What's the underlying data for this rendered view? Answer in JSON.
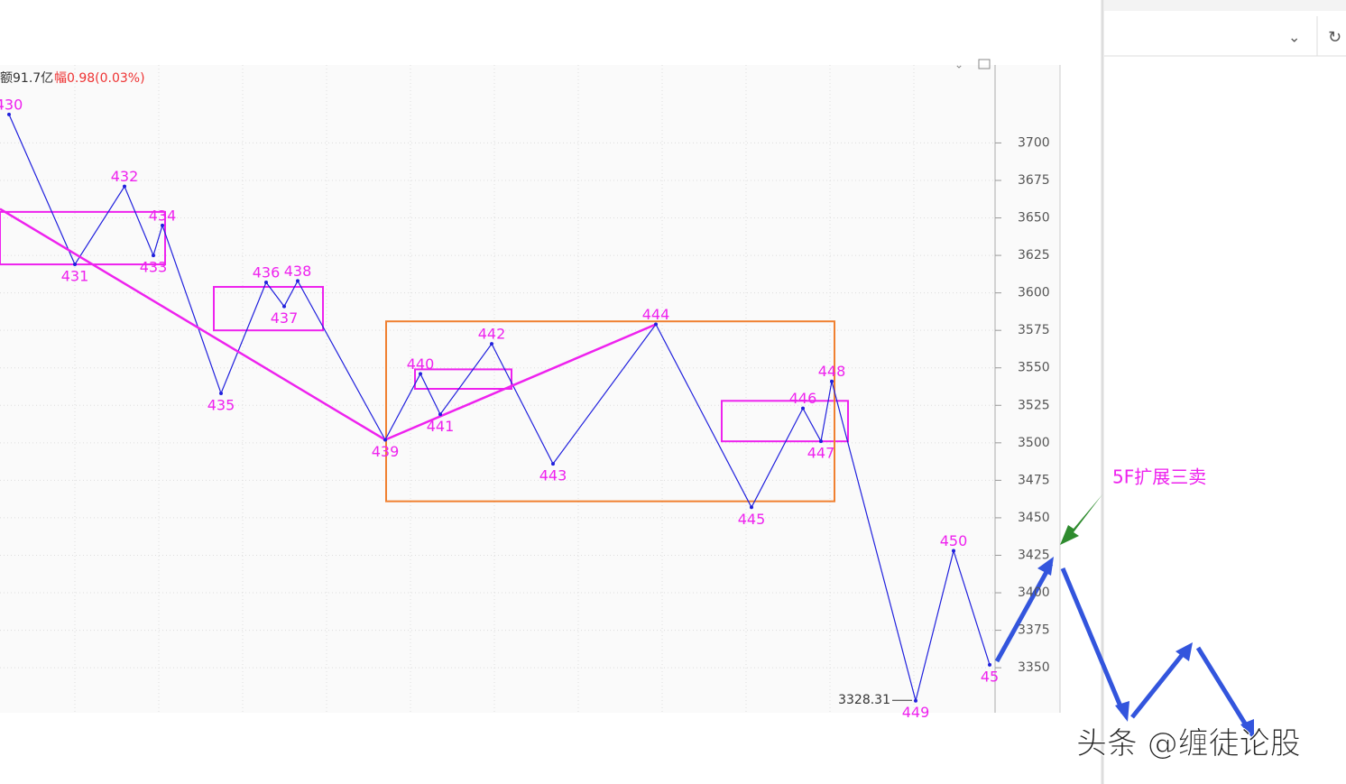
{
  "chart_data": {
    "type": "zigzag",
    "header_volume": "额91.7亿",
    "header_change": "幅0.98(0.03%)",
    "x": [
      10,
      83,
      138,
      170,
      180,
      245,
      295,
      315,
      330,
      427,
      466,
      488,
      545,
      613,
      727,
      833,
      890,
      910,
      922,
      1015,
      1057,
      1097
    ],
    "labels": [
      "430",
      "431",
      "432",
      "433",
      "434",
      "435",
      "436",
      "437",
      "438",
      "439",
      "440",
      "441",
      "442",
      "443",
      "444",
      "445",
      "446",
      "447",
      "448",
      "449",
      "450",
      "45"
    ],
    "series": [
      {
        "color": "#2020dd",
        "values": [
          3719,
          3619,
          3671,
          3625,
          3645,
          3533,
          3607,
          3591,
          3608,
          3502,
          3546,
          3519,
          3566,
          3486,
          3579,
          3457,
          3523,
          3501,
          3541,
          3328,
          3428,
          3352
        ]
      },
      {
        "color": "#ee22ee",
        "x": [
          0,
          427,
          727
        ],
        "values": [
          3656,
          3502,
          3579
        ]
      }
    ],
    "zones": [
      {
        "color": "#ee22ee",
        "x": [
          0,
          183
        ],
        "y": [
          3619,
          3654
        ]
      },
      {
        "color": "#ee22ee",
        "x": [
          237,
          358
        ],
        "y": [
          3575,
          3604
        ]
      },
      {
        "color": "#ee22ee",
        "x": [
          460,
          567
        ],
        "y": [
          3536,
          3549
        ]
      },
      {
        "color": "#ee22ee",
        "x": [
          800,
          940
        ],
        "y": [
          3501,
          3528
        ]
      },
      {
        "color": "#f08030",
        "x": [
          428,
          925
        ],
        "y": [
          3461,
          3581
        ]
      }
    ],
    "low_label": 3328.31,
    "xlim": [
      0,
      1105
    ],
    "ylim": [
      3320,
      3752
    ],
    "yticks": [
      3350,
      3375,
      3400,
      3425,
      3450,
      3475,
      3500,
      3525,
      3550,
      3575,
      3600,
      3625,
      3650,
      3675,
      3700
    ],
    "grid": true,
    "annotation": "5F扩展三卖",
    "watermark": "头条 @缠徒论股"
  }
}
